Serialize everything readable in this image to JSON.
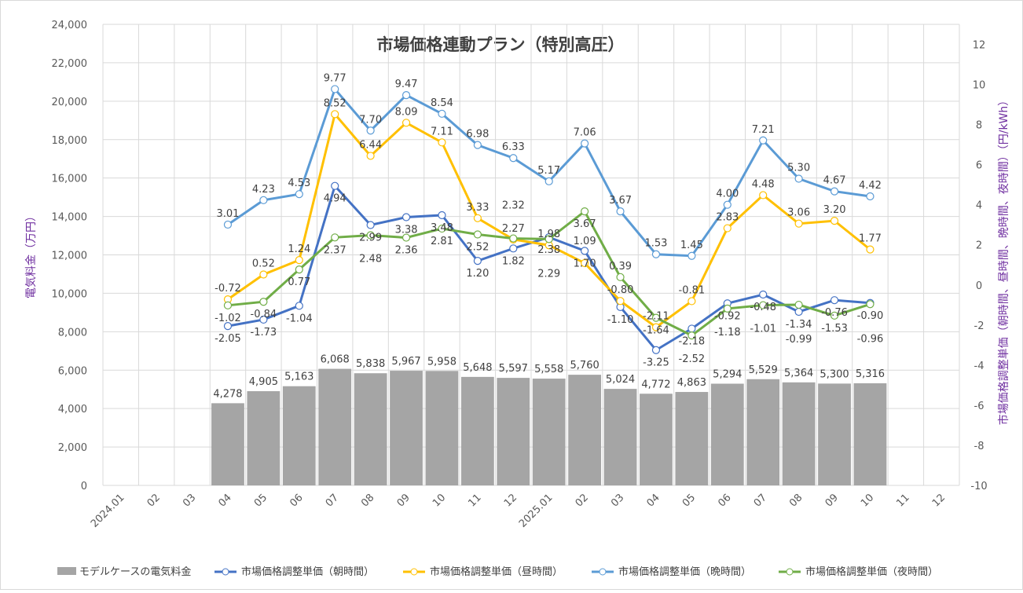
{
  "chart_data": {
    "type": "bar+line",
    "title": "市場価格連動プラン（特別高圧）",
    "ylabel": "電気料金（万円）",
    "y2label": "市場価格調整単価（朝時間、昼時間、晩時間、夜時間）（円/kWh）",
    "ylim": [
      0,
      24000
    ],
    "y2lim": [
      -10,
      13
    ],
    "yticks": [
      "0",
      "2,000",
      "4,000",
      "6,000",
      "8,000",
      "10,000",
      "12,000",
      "14,000",
      "16,000",
      "18,000",
      "20,000",
      "22,000",
      "24,000"
    ],
    "y2ticks": [
      "-10",
      "-8",
      "-6",
      "-4",
      "-2",
      "0",
      "2",
      "4",
      "6",
      "8",
      "10",
      "12"
    ],
    "grid": true,
    "legend_position": "bottom",
    "categories": [
      "2024.01",
      "02",
      "03",
      "04",
      "05",
      "06",
      "07",
      "08",
      "09",
      "10",
      "11",
      "12",
      "2025.01",
      "02",
      "03",
      "04",
      "05",
      "06",
      "07",
      "08",
      "09",
      "10",
      "11",
      "12"
    ],
    "bars": {
      "name": "モデルケースの電気料金",
      "color": "#a5a5a5",
      "values": [
        null,
        null,
        null,
        4278,
        4905,
        5163,
        6068,
        5838,
        5967,
        5958,
        5648,
        5597,
        5558,
        5760,
        5024,
        4772,
        4863,
        5294,
        5529,
        5364,
        5300,
        5316,
        null,
        null
      ],
      "labels": [
        null,
        null,
        null,
        "4,278",
        "4,905",
        "5,163",
        "6,068",
        "5,838",
        "5,967",
        "5,958",
        "5,648",
        "5,597",
        "5,558",
        "5,760",
        "5,024",
        "4,772",
        "4,863",
        "5,294",
        "5,529",
        "5,364",
        "5,300",
        "5,316",
        null,
        null
      ]
    },
    "series": [
      {
        "name": "市場価格調整単価（朝時間）",
        "color": "#4472c4",
        "label_pos": "below",
        "values": [
          null,
          null,
          null,
          -2.05,
          -1.73,
          -1.04,
          4.94,
          2.99,
          3.38,
          3.48,
          1.2,
          1.82,
          2.38,
          1.7,
          -1.1,
          -3.25,
          -2.18,
          -0.92,
          -0.48,
          -1.34,
          -0.76,
          -0.9,
          null,
          null
        ]
      },
      {
        "name": "市場価格調整単価（昼時間）",
        "color": "#ffc000",
        "label_pos": "above",
        "values": [
          null,
          null,
          null,
          -0.72,
          0.52,
          1.24,
          8.52,
          6.44,
          8.09,
          7.11,
          3.33,
          2.27,
          1.98,
          1.09,
          -0.8,
          -2.11,
          -0.81,
          2.83,
          4.48,
          3.06,
          3.2,
          1.77,
          null,
          null
        ]
      },
      {
        "name": "市場価格調整単価（晩時間）",
        "color": "#5b9bd5",
        "label_pos": "above",
        "values": [
          null,
          null,
          null,
          3.01,
          4.23,
          4.53,
          9.77,
          7.7,
          9.47,
          8.54,
          6.98,
          6.33,
          5.17,
          7.06,
          3.67,
          1.53,
          1.45,
          4.0,
          7.21,
          5.3,
          4.67,
          4.42,
          null,
          null
        ]
      },
      {
        "name": "市場価格調整単価（夜時間）",
        "color": "#70ad47",
        "label_pos": "below",
        "values": [
          null,
          null,
          null,
          -1.02,
          -0.84,
          0.77,
          2.37,
          2.48,
          2.36,
          2.81,
          2.52,
          2.32,
          2.29,
          3.67,
          0.39,
          -1.64,
          -2.52,
          -1.18,
          -1.01,
          -0.99,
          -1.53,
          -0.96,
          null,
          null
        ]
      }
    ]
  }
}
